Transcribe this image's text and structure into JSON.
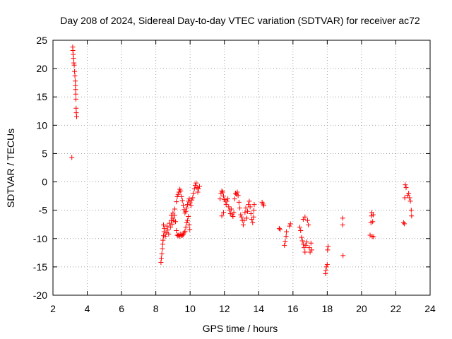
{
  "chart_data": {
    "type": "scatter",
    "title": "Day 208 of 2024, Sidereal Day-to-day VTEC variation (SDTVAR) for receiver ac72",
    "xlabel": "GPS time / hours",
    "ylabel": "SDTVAR / TECUs",
    "xlim": [
      2,
      24
    ],
    "ylim": [
      -20,
      25
    ],
    "xticks": [
      2,
      4,
      6,
      8,
      10,
      12,
      14,
      16,
      18,
      20,
      22,
      24
    ],
    "yticks": [
      -20,
      -15,
      -10,
      -5,
      0,
      5,
      10,
      15,
      20,
      25
    ],
    "xtick_labels": [
      "2",
      "4",
      "6",
      "8",
      "10",
      "12",
      "14",
      "16",
      "18",
      "20",
      "22",
      "24"
    ],
    "ytick_labels": [
      "-20",
      "-15",
      "-10",
      "-5",
      "0",
      "5",
      "10",
      "15",
      "20",
      "25"
    ],
    "grid": true,
    "marker": "+",
    "color": "#ff0000",
    "series": [
      {
        "name": "SDTVAR",
        "points": [
          [
            3.1,
            4.3
          ],
          [
            3.15,
            23.8
          ],
          [
            3.16,
            23.2
          ],
          [
            3.18,
            22.5
          ],
          [
            3.2,
            21.8
          ],
          [
            3.22,
            21.0
          ],
          [
            3.24,
            20.6
          ],
          [
            3.26,
            19.5
          ],
          [
            3.28,
            18.7
          ],
          [
            3.3,
            17.8
          ],
          [
            3.31,
            17.0
          ],
          [
            3.32,
            16.3
          ],
          [
            3.33,
            15.5
          ],
          [
            3.34,
            14.6
          ],
          [
            3.35,
            13.0
          ],
          [
            3.36,
            12.2
          ],
          [
            3.38,
            11.5
          ],
          [
            8.3,
            -14.2
          ],
          [
            8.32,
            -13.5
          ],
          [
            8.35,
            -12.7
          ],
          [
            8.38,
            -11.8
          ],
          [
            8.4,
            -11.0
          ],
          [
            8.42,
            -10.3
          ],
          [
            8.45,
            -9.5
          ],
          [
            8.48,
            -8.8
          ],
          [
            8.5,
            -8.2
          ],
          [
            8.45,
            -7.6
          ],
          [
            8.55,
            -9.6
          ],
          [
            8.6,
            -9.0
          ],
          [
            8.65,
            -7.8
          ],
          [
            8.7,
            -8.5
          ],
          [
            8.75,
            -9.2
          ],
          [
            8.8,
            -7.3
          ],
          [
            8.85,
            -8.0
          ],
          [
            8.9,
            -6.8
          ],
          [
            8.95,
            -7.5
          ],
          [
            9.0,
            -6.4
          ],
          [
            9.05,
            -6.9
          ],
          [
            9.1,
            -5.9
          ],
          [
            9.15,
            -7.0
          ],
          [
            9.2,
            -8.6
          ],
          [
            9.25,
            -9.4
          ],
          [
            9.3,
            -9.5
          ],
          [
            9.35,
            -9.3
          ],
          [
            9.4,
            -9.6
          ],
          [
            9.45,
            -9.2
          ],
          [
            9.5,
            -9.5
          ],
          [
            9.55,
            -9.4
          ],
          [
            9.6,
            -9.3
          ],
          [
            9.65,
            -9.0
          ],
          [
            9.7,
            -8.7
          ],
          [
            9.75,
            -8.0
          ],
          [
            9.8,
            -7.2
          ],
          [
            9.85,
            -6.8
          ],
          [
            9.9,
            -6.1
          ],
          [
            9.95,
            -7.6
          ],
          [
            9.98,
            -8.4
          ],
          [
            8.9,
            -5.9
          ],
          [
            9.0,
            -5.5
          ],
          [
            9.1,
            -4.8
          ],
          [
            9.2,
            -3.5
          ],
          [
            9.25,
            -2.6
          ],
          [
            9.3,
            -2.2
          ],
          [
            9.35,
            -1.8
          ],
          [
            9.4,
            -1.3
          ],
          [
            9.45,
            -1.6
          ],
          [
            9.5,
            -2.6
          ],
          [
            9.55,
            -3.3
          ],
          [
            9.6,
            -4.1
          ],
          [
            9.65,
            -4.9
          ],
          [
            9.7,
            -5.5
          ],
          [
            9.75,
            -5.2
          ],
          [
            9.8,
            -4.6
          ],
          [
            9.85,
            -4.0
          ],
          [
            9.9,
            -3.4
          ],
          [
            9.95,
            -3.0
          ],
          [
            10.0,
            -3.7
          ],
          [
            10.05,
            -4.2
          ],
          [
            10.1,
            -3.2
          ],
          [
            10.15,
            -2.8
          ],
          [
            10.2,
            -2.0
          ],
          [
            10.25,
            -1.2
          ],
          [
            10.3,
            -0.6
          ],
          [
            10.35,
            -0.2
          ],
          [
            10.4,
            -1.0
          ],
          [
            10.45,
            -1.8
          ],
          [
            10.5,
            -1.2
          ],
          [
            10.55,
            -0.8
          ],
          [
            11.75,
            -3.0
          ],
          [
            11.8,
            -2.0
          ],
          [
            11.85,
            -1.6
          ],
          [
            11.9,
            -1.8
          ],
          [
            11.95,
            -2.5
          ],
          [
            12.0,
            -3.1
          ],
          [
            12.05,
            -3.4
          ],
          [
            12.1,
            -4.0
          ],
          [
            12.15,
            -3.4
          ],
          [
            12.2,
            -3.0
          ],
          [
            12.25,
            -4.4
          ],
          [
            12.3,
            -5.0
          ],
          [
            12.35,
            -5.6
          ],
          [
            12.4,
            -4.8
          ],
          [
            12.45,
            -5.8
          ],
          [
            12.5,
            -6.1
          ],
          [
            12.55,
            -5.4
          ],
          [
            12.6,
            -3.0
          ],
          [
            12.65,
            -2.0
          ],
          [
            12.7,
            -2.2
          ],
          [
            12.75,
            -1.8
          ],
          [
            12.8,
            -2.4
          ],
          [
            12.85,
            -3.6
          ],
          [
            12.9,
            -4.6
          ],
          [
            12.95,
            -5.8
          ],
          [
            13.0,
            -6.2
          ],
          [
            13.05,
            -6.8
          ],
          [
            13.1,
            -7.6
          ],
          [
            13.15,
            -6.8
          ],
          [
            13.2,
            -5.4
          ],
          [
            13.25,
            -4.6
          ],
          [
            13.3,
            -6.4
          ],
          [
            13.35,
            -5.2
          ],
          [
            13.4,
            -4.0
          ],
          [
            13.45,
            -3.4
          ],
          [
            13.5,
            -4.4
          ],
          [
            13.55,
            -5.6
          ],
          [
            13.6,
            -6.6
          ],
          [
            13.65,
            -7.2
          ],
          [
            13.7,
            -6.2
          ],
          [
            13.72,
            -5.0
          ],
          [
            13.74,
            -4.0
          ],
          [
            11.85,
            -6.0
          ],
          [
            11.95,
            -5.4
          ],
          [
            14.2,
            -3.6
          ],
          [
            14.25,
            -3.9
          ],
          [
            14.3,
            -4.2
          ],
          [
            15.2,
            -8.2
          ],
          [
            15.25,
            -8.4
          ],
          [
            15.5,
            -11.2
          ],
          [
            15.55,
            -10.5
          ],
          [
            15.6,
            -9.6
          ],
          [
            15.62,
            -8.8
          ],
          [
            15.8,
            -7.8
          ],
          [
            15.85,
            -7.4
          ],
          [
            16.4,
            -8.0
          ],
          [
            16.45,
            -8.6
          ],
          [
            16.5,
            -9.8
          ],
          [
            16.55,
            -10.4
          ],
          [
            16.6,
            -11.0
          ],
          [
            16.65,
            -11.6
          ],
          [
            16.7,
            -12.4
          ],
          [
            16.75,
            -11.2
          ],
          [
            16.8,
            -10.6
          ],
          [
            16.6,
            -6.6
          ],
          [
            16.7,
            -6.2
          ],
          [
            16.85,
            -6.8
          ],
          [
            16.9,
            -7.6
          ],
          [
            16.95,
            -11.6
          ],
          [
            17.0,
            -12.4
          ],
          [
            17.05,
            -10.8
          ],
          [
            17.1,
            -12.0
          ],
          [
            17.9,
            -16.2
          ],
          [
            17.92,
            -15.6
          ],
          [
            17.95,
            -15.0
          ],
          [
            18.0,
            -14.6
          ],
          [
            18.02,
            -12.0
          ],
          [
            18.05,
            -11.4
          ],
          [
            18.9,
            -6.4
          ],
          [
            18.9,
            -7.6
          ],
          [
            18.92,
            -13.0
          ],
          [
            20.5,
            -9.4
          ],
          [
            20.55,
            -7.2
          ],
          [
            20.58,
            -6.0
          ],
          [
            20.6,
            -5.4
          ],
          [
            20.62,
            -9.6
          ],
          [
            20.65,
            -7.0
          ],
          [
            20.68,
            -5.8
          ],
          [
            20.7,
            -9.7
          ],
          [
            22.45,
            -7.2
          ],
          [
            22.5,
            -7.4
          ],
          [
            22.52,
            -2.8
          ],
          [
            22.55,
            -0.5
          ],
          [
            22.6,
            -1.0
          ],
          [
            22.7,
            -2.4
          ],
          [
            22.75,
            -2.0
          ],
          [
            22.8,
            -2.8
          ],
          [
            22.85,
            -3.4
          ],
          [
            22.9,
            -5.0
          ],
          [
            22.92,
            -6.0
          ]
        ]
      }
    ]
  }
}
